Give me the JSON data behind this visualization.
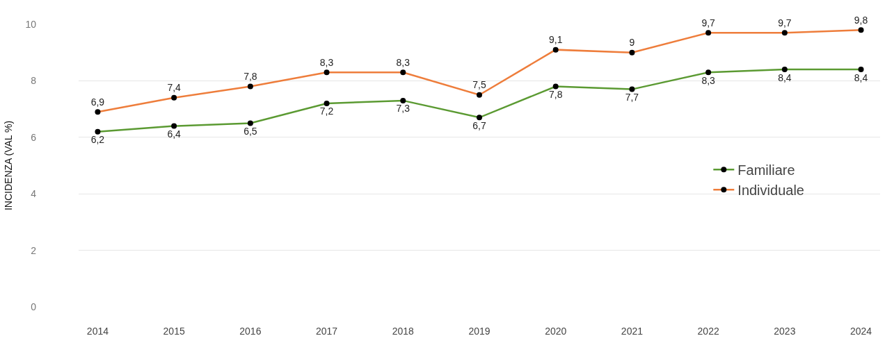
{
  "chart_data": {
    "type": "line",
    "ylabel": "INCIDENZA (VAL %)",
    "categories": [
      "2014",
      "2015",
      "2016",
      "2017",
      "2018",
      "2019",
      "2020",
      "2021",
      "2022",
      "2023",
      "2024"
    ],
    "series": [
      {
        "name": "Familiare",
        "color": "#5b9a32",
        "values": [
          6.2,
          6.4,
          6.5,
          7.2,
          7.3,
          6.7,
          7.8,
          7.7,
          8.3,
          8.4,
          8.4
        ],
        "value_labels": [
          "6,2",
          "6,4",
          "6,5",
          "7,2",
          "7,3",
          "6,7",
          "7,8",
          "7,7",
          "8,3",
          "8,4",
          "8,4"
        ]
      },
      {
        "name": "Individuale",
        "color": "#ee7d3b",
        "values": [
          6.9,
          7.4,
          7.8,
          8.3,
          8.3,
          7.5,
          9.1,
          9.0,
          9.7,
          9.7,
          9.8
        ],
        "value_labels": [
          "6,9",
          "7,4",
          "7,8",
          "8,3",
          "8,3",
          "7,5",
          "9,1",
          "9",
          "9,7",
          "9,7",
          "9,8"
        ]
      }
    ],
    "ylim": [
      0,
      10
    ],
    "yticks": [
      0,
      2,
      4,
      6,
      8,
      10
    ],
    "grid": "y",
    "legend": "right",
    "marker": "circle",
    "line_style": "solid"
  }
}
